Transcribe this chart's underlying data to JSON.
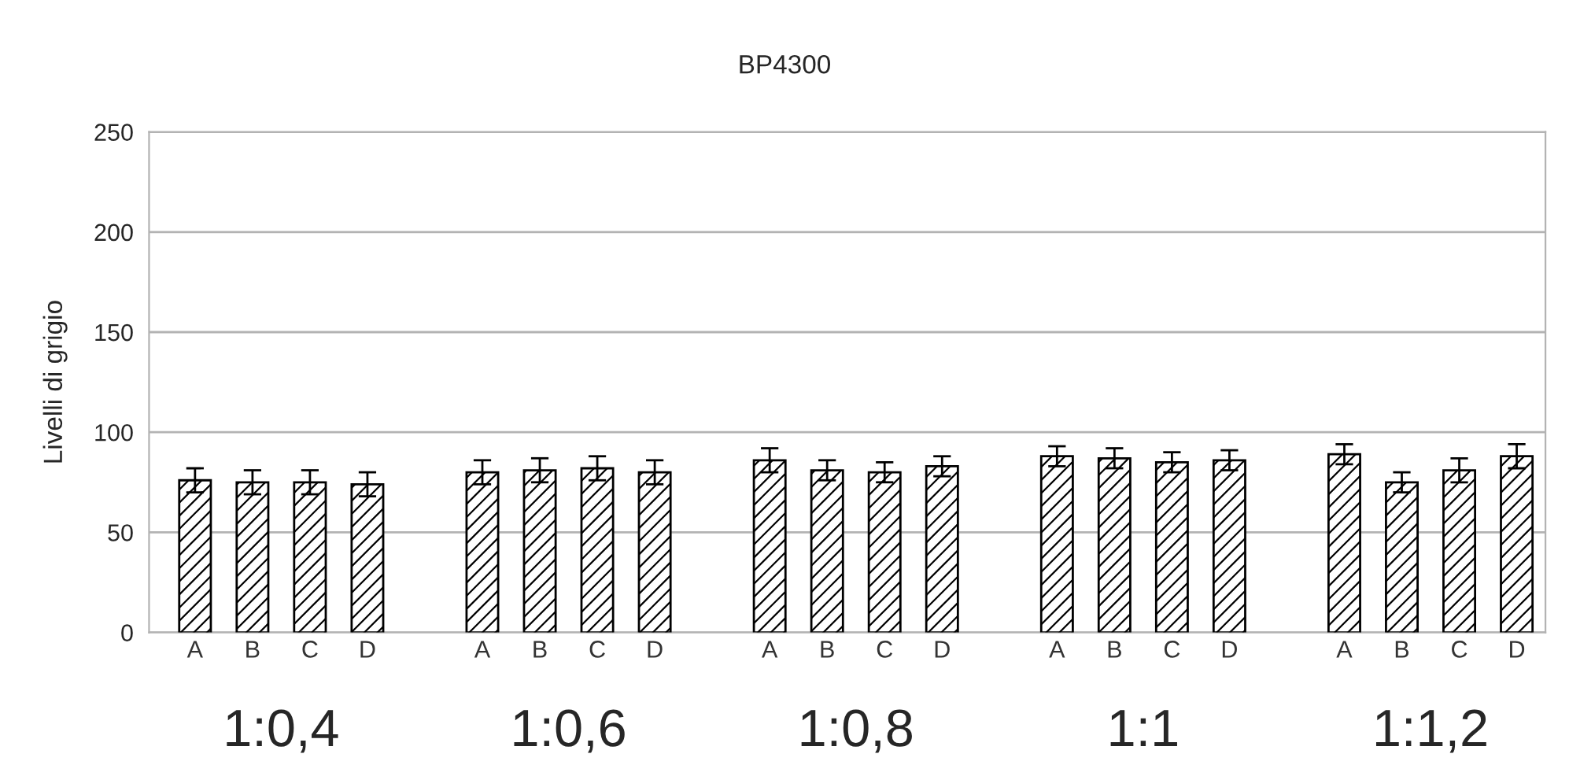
{
  "chart_data": {
    "type": "bar",
    "title": "BP4300",
    "ylabel": "Livelli di grigio",
    "categories": [
      "A",
      "B",
      "C",
      "D",
      null,
      "A",
      "B",
      "C",
      "D",
      null,
      "A",
      "B",
      "C",
      "D",
      null,
      "A",
      "B",
      "C",
      "D",
      null,
      "A",
      "B",
      "C",
      "D"
    ],
    "values": [
      76,
      75,
      75,
      74,
      null,
      80,
      81,
      82,
      80,
      null,
      86,
      81,
      80,
      83,
      null,
      88,
      87,
      85,
      86,
      null,
      89,
      75,
      81,
      88
    ],
    "errors": [
      6,
      6,
      6,
      6,
      null,
      6,
      6,
      6,
      6,
      null,
      6,
      5,
      5,
      5,
      null,
      5,
      5,
      5,
      5,
      null,
      5,
      5,
      6,
      6
    ],
    "color": "#000000",
    "annotations": [
      "1:0,4",
      "1:0,6",
      "1:0,8",
      "1:1",
      "1:1,2"
    ],
    "ylim": [
      0,
      250
    ],
    "yticks": [
      0,
      50,
      100,
      150,
      200,
      250
    ],
    "grid": "y",
    "legend": false
  }
}
